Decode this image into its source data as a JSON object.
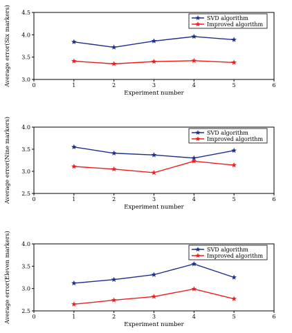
{
  "chart_data": [
    {
      "type": "line",
      "xlabel": "Experiment number",
      "ylabel": "Average error(Six markers)",
      "xlim": [
        0,
        6
      ],
      "ylim": [
        3.0,
        4.5
      ],
      "xticks": [
        "0",
        "1",
        "2",
        "3",
        "4",
        "5",
        "6"
      ],
      "yticks": [
        "3.0",
        "3.5",
        "4.0",
        "4.5"
      ],
      "legend_position": "top-right",
      "x": [
        1,
        2,
        3,
        4,
        5
      ],
      "series": [
        {
          "name": "SVD algorithm",
          "color": "#1a2e8c",
          "marker": "star",
          "values": [
            3.84,
            3.72,
            3.86,
            3.96,
            3.89
          ]
        },
        {
          "name": "Improved algorithm",
          "color": "#ee1c1c",
          "marker": "star",
          "values": [
            3.41,
            3.35,
            3.4,
            3.42,
            3.38
          ]
        }
      ]
    },
    {
      "type": "line",
      "xlabel": "Experiment number",
      "ylabel": "Average error(Nine markers)",
      "xlim": [
        0,
        6
      ],
      "ylim": [
        2.5,
        4.0
      ],
      "xticks": [
        "0",
        "1",
        "2",
        "3",
        "4",
        "5",
        "6"
      ],
      "yticks": [
        "2.5",
        "3.0",
        "3.5",
        "4.0"
      ],
      "legend_position": "top-right",
      "x": [
        1,
        2,
        3,
        4,
        5
      ],
      "series": [
        {
          "name": "SVD algorithm",
          "color": "#1a2e8c",
          "marker": "star",
          "values": [
            3.55,
            3.41,
            3.37,
            3.3,
            3.47
          ]
        },
        {
          "name": "Improved algorithm",
          "color": "#ee1c1c",
          "marker": "star",
          "values": [
            3.11,
            3.05,
            2.97,
            3.23,
            3.14
          ]
        }
      ]
    },
    {
      "type": "line",
      "xlabel": "Experiment number",
      "ylabel": "Average error(Eleven markers)",
      "xlim": [
        0,
        6
      ],
      "ylim": [
        2.5,
        4.0
      ],
      "xticks": [
        "0",
        "1",
        "2",
        "3",
        "4",
        "5",
        "6"
      ],
      "yticks": [
        "2.5",
        "3.0",
        "3.5",
        "4.0"
      ],
      "legend_position": "top-right",
      "x": [
        1,
        2,
        3,
        4,
        5
      ],
      "series": [
        {
          "name": "SVD algorithm",
          "color": "#1a2e8c",
          "marker": "star",
          "values": [
            3.12,
            3.2,
            3.31,
            3.55,
            3.25
          ]
        },
        {
          "name": "Improved algorithm",
          "color": "#ee1c1c",
          "marker": "star",
          "values": [
            2.65,
            2.74,
            2.82,
            2.99,
            2.77
          ]
        }
      ]
    }
  ]
}
